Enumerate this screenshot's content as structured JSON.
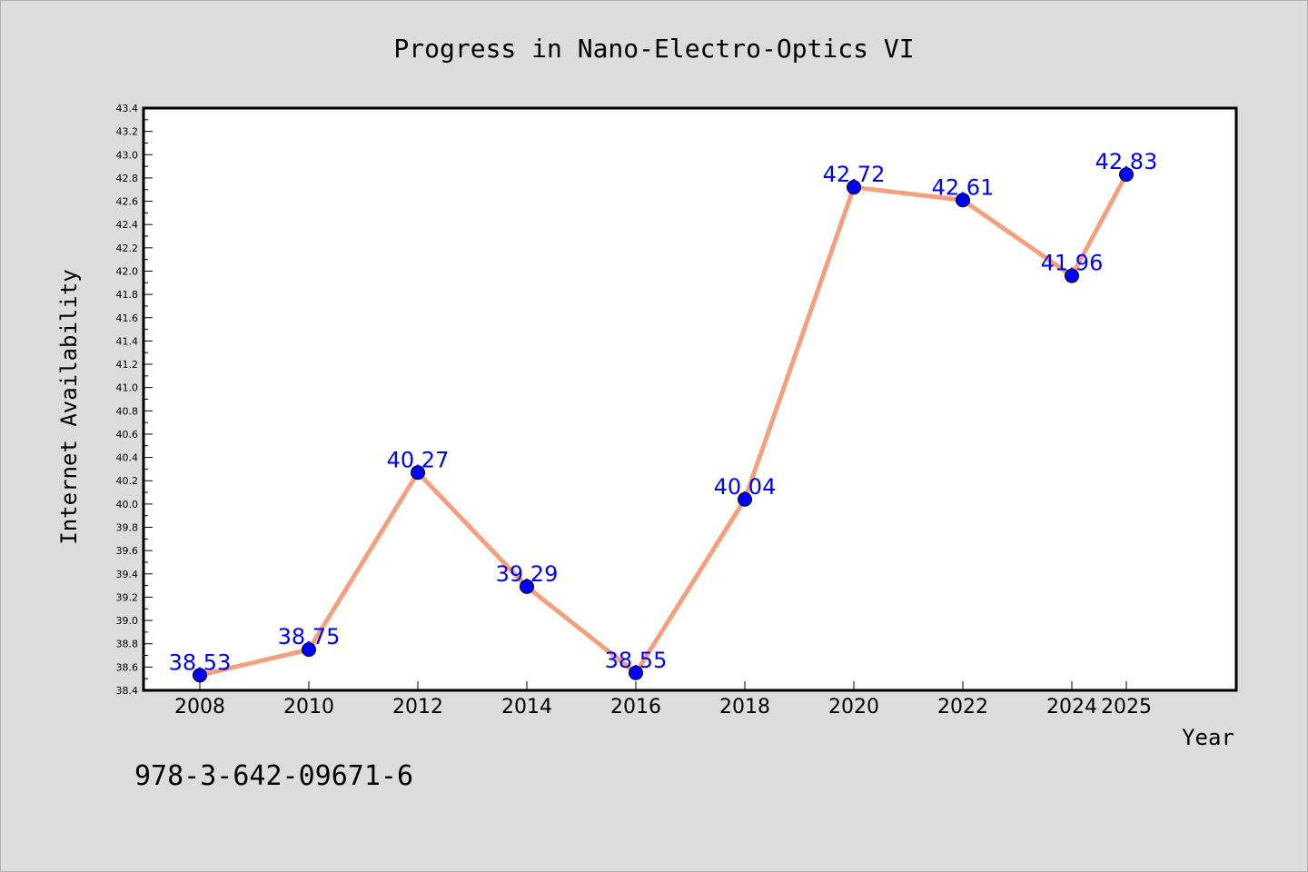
{
  "chart_data": {
    "type": "line",
    "title": "Progress in Nano-Electro-Optics VI",
    "xlabel": "Year",
    "ylabel": "Internet Availability",
    "x": [
      2008,
      2010,
      2012,
      2014,
      2016,
      2018,
      2020,
      2022,
      2024,
      2025
    ],
    "series": [
      {
        "values": [
          38.53,
          38.75,
          40.27,
          39.29,
          38.55,
          40.04,
          42.72,
          42.61,
          41.96,
          42.83
        ],
        "labels": [
          "38.53",
          "38.75",
          "40.27",
          "39.29",
          "38.55",
          "40.04",
          "42.72",
          "42.61",
          "41.96",
          "42.83"
        ],
        "line_color": "#f4a07e",
        "marker_color": "#0000ff"
      }
    ],
    "xticks": [
      "2008",
      "2010",
      "2012",
      "2014",
      "2016",
      "2018",
      "2020",
      "2022",
      "2024",
      "2025"
    ],
    "yticks": [
      "38.4",
      "38.6",
      "38.8",
      "39.0",
      "39.2",
      "39.4",
      "39.6",
      "39.8",
      "40.0",
      "40.2",
      "40.4",
      "40.6",
      "40.8",
      "41.0",
      "41.2",
      "41.4",
      "41.6",
      "41.8",
      "42.0",
      "42.2",
      "42.4",
      "42.6",
      "42.8",
      "43.0",
      "43.2",
      "43.4"
    ],
    "ylim": [
      38.4,
      43.4
    ],
    "grid": false,
    "legend": "none"
  },
  "footer": {
    "isbn": "978-3-642-09671-6"
  },
  "colors": {
    "background": "#dcdcdc",
    "plot_background": "#ffffff",
    "line": "#f4a07e",
    "marker": "#0000ff",
    "label": "#0000ff"
  }
}
